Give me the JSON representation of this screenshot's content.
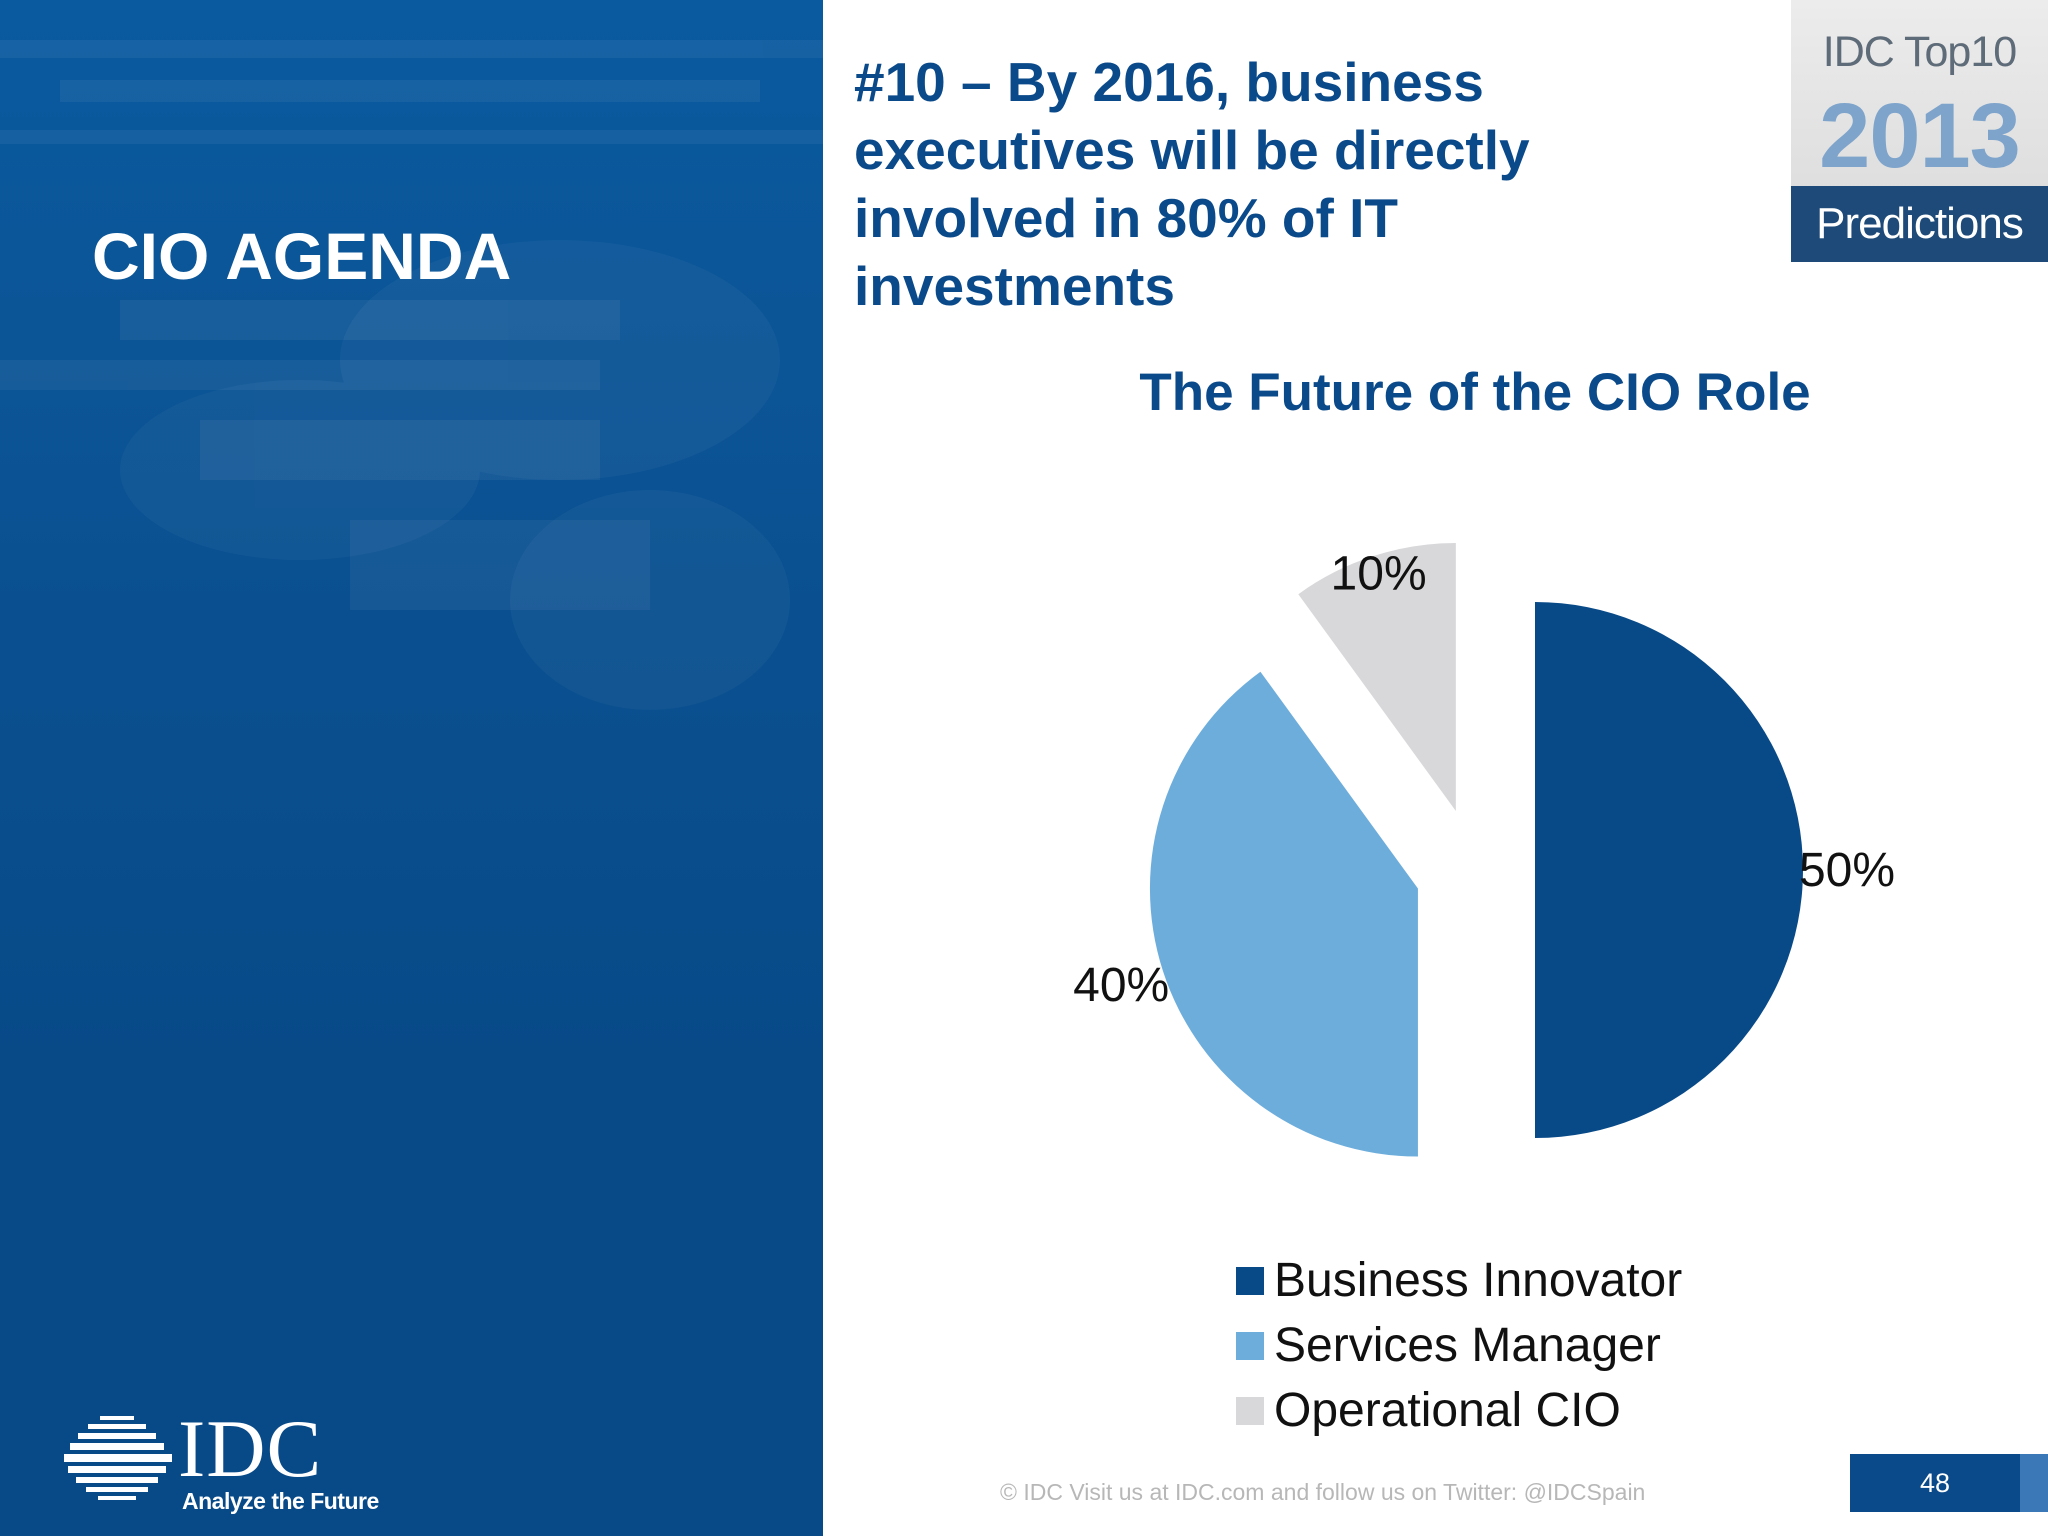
{
  "section": {
    "title": "CIO AGENDA"
  },
  "headline": "#10 – By 2016, business executives will be directly involved in 80% of IT investments",
  "badge": {
    "top": "IDC Top10",
    "year": "2013",
    "bottom": "Predictions"
  },
  "logo": {
    "word": "IDC",
    "tagline": "Analyze the Future"
  },
  "footer": {
    "text": "© IDC   Visit us at IDC.com and follow us on Twitter: @IDCSpain",
    "page_number": "48"
  },
  "colors": {
    "brand_blue": "#0b4a8a",
    "business_innovator": "#084a88",
    "services_manager": "#6daddc",
    "operational_cio": "#d8d8da"
  },
  "chart_data": {
    "type": "pie",
    "title": "The Future of the CIO Role",
    "legend_position": "bottom",
    "exploded": true,
    "slices": [
      {
        "name": "Business Innovator",
        "value": 50,
        "label": "50%",
        "color": "#084a88"
      },
      {
        "name": "Services Manager",
        "value": 40,
        "label": "40%",
        "color": "#6daddc"
      },
      {
        "name": "Operational CIO",
        "value": 10,
        "label": "10%",
        "color": "#d8d8da"
      }
    ]
  }
}
